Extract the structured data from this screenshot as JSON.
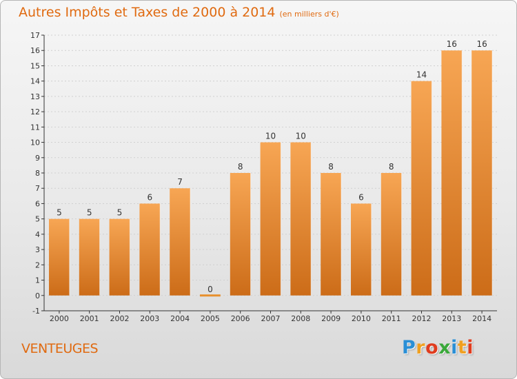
{
  "header": {
    "title": "Autres Impôts et Taxes de 2000 à 2014",
    "unit": "(en milliers d'€)"
  },
  "commune": "VENTEUGES",
  "logo": {
    "text": "Proxiti",
    "letters": [
      {
        "char": "P",
        "color": "#2a8fd6"
      },
      {
        "char": "r",
        "color": "#f0a020"
      },
      {
        "char": "o",
        "color": "#e03c1e"
      },
      {
        "char": "x",
        "color": "#3aa83a"
      },
      {
        "char": "i",
        "color": "#2a8fd6"
      },
      {
        "char": "t",
        "color": "#f0a020"
      },
      {
        "char": "i",
        "color": "#e03c1e"
      }
    ]
  },
  "colors": {
    "accent": "#e06a10",
    "bar_top": "#f7a654",
    "bar_bottom": "#cc6c18",
    "axis": "#333333",
    "grid": "#d0d0d0",
    "zero_bar": "#e8902c"
  },
  "chart_data": {
    "type": "bar",
    "title": "Autres Impôts et Taxes de 2000 à 2014",
    "subtitle": "(en milliers d'€)",
    "xlabel": "",
    "ylabel": "",
    "categories": [
      "2000",
      "2001",
      "2002",
      "2003",
      "2004",
      "2005",
      "2006",
      "2007",
      "2008",
      "2009",
      "2010",
      "2011",
      "2012",
      "2013",
      "2014"
    ],
    "values": [
      5,
      5,
      5,
      6,
      7,
      0,
      8,
      10,
      10,
      8,
      6,
      8,
      14,
      16,
      16
    ],
    "data_labels": [
      "5",
      "5",
      "5",
      "6",
      "7",
      "0",
      "8",
      "10",
      "10",
      "8",
      "6",
      "8",
      "14",
      "16",
      "16"
    ],
    "ylim": [
      -1,
      17
    ],
    "yticks": [
      -1,
      0,
      1,
      2,
      3,
      4,
      5,
      6,
      7,
      8,
      9,
      10,
      11,
      12,
      13,
      14,
      15,
      16,
      17
    ],
    "grid": true,
    "legend": "none"
  }
}
